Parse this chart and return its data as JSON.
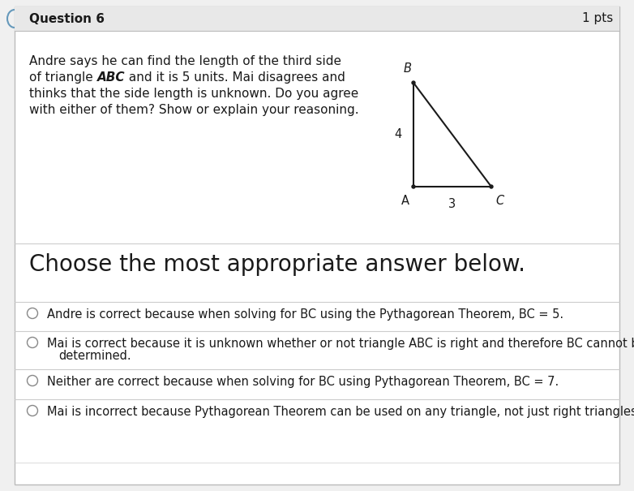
{
  "title": "Question 6",
  "pts": "1 pts",
  "bg_outer": "#f0f0f0",
  "bg_inner": "#ffffff",
  "border_color": "#bbbbbb",
  "header_bg": "#e8e8e8",
  "separator_color": "#cccccc",
  "title_fontsize": 11,
  "pts_fontsize": 11,
  "question_fontsize": 11,
  "choose_fontsize": 20,
  "option_fontsize": 10.5,
  "triangle_label_A": "A",
  "triangle_label_B": "B",
  "triangle_label_C": "C",
  "triangle_label_4": "4",
  "triangle_label_3": "3",
  "choose_text": "Choose the most appropriate answer below.",
  "options": [
    "Andre is correct because when solving for BC using the Pythagorean Theorem, BC = 5.",
    "Mai is correct because it is unknown whether or not triangle ABC is right and therefore BC cannot be",
    "determined.",
    "Neither are correct because when solving for BC using Pythagorean Theorem, BC = 7.",
    "Mai is incorrect because Pythagorean Theorem can be used on any triangle, not just right triangles"
  ],
  "q_line1": "Andre says he can find the length of the third side",
  "q_line2_pre": "of triangle ",
  "q_line2_italic": "ABC",
  "q_line2_post": " and it is 5 units. Mai disagrees and",
  "q_line3": "thinks that the side length is unknown. Do you agree",
  "q_line4": "with either of them? Show or explain your reasoning."
}
